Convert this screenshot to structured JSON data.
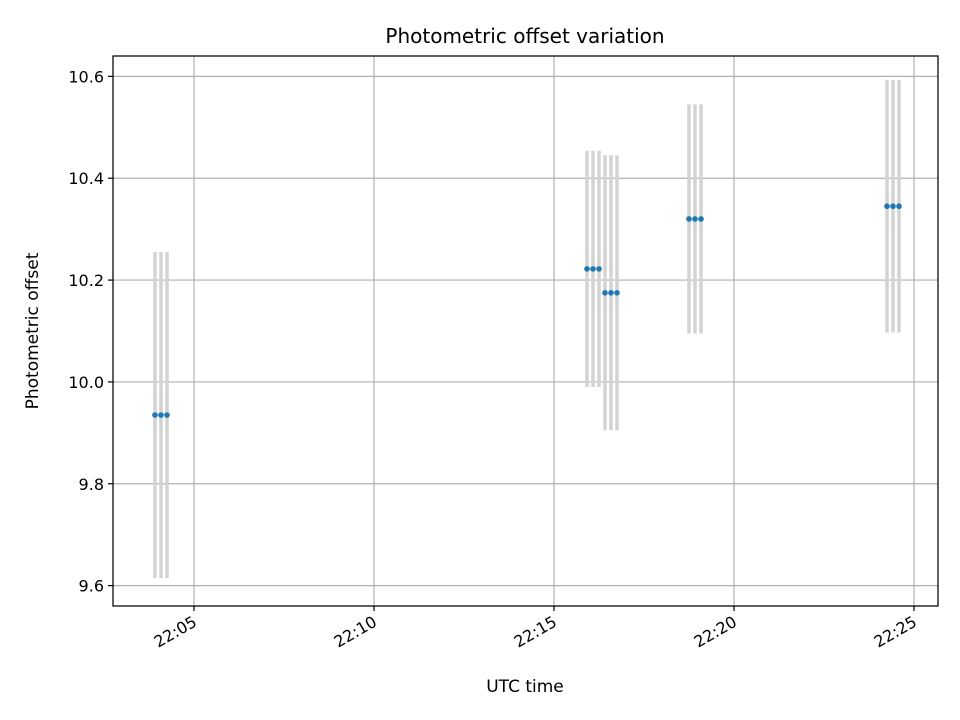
{
  "chart_data": {
    "type": "scatter",
    "title": "Photometric offset variation",
    "xlabel": "UTC time",
    "ylabel": "Photometric offset",
    "x_unit": "HH:MM UTC",
    "xlim": [
      "22:02:45",
      "22:25:40"
    ],
    "ylim": [
      9.56,
      10.64
    ],
    "xticks": [
      "22:05",
      "22:10",
      "22:15",
      "22:20",
      "22:25"
    ],
    "yticks": [
      "9.6",
      "9.8",
      "10.0",
      "10.2",
      "10.4",
      "10.6"
    ],
    "grid": true,
    "point_color": "#1f77b4",
    "errorbar_color": "#d3d3d3",
    "series": [
      {
        "points": [
          {
            "x": "22:03:55",
            "y": 9.935,
            "err": 0.32
          },
          {
            "x": "22:04:05",
            "y": 9.935,
            "err": 0.32
          },
          {
            "x": "22:04:15",
            "y": 9.935,
            "err": 0.32
          },
          {
            "x": "22:15:55",
            "y": 10.222,
            "err": 0.232
          },
          {
            "x": "22:16:05",
            "y": 10.222,
            "err": 0.232
          },
          {
            "x": "22:16:15",
            "y": 10.222,
            "err": 0.232
          },
          {
            "x": "22:16:25",
            "y": 10.175,
            "err": 0.27
          },
          {
            "x": "22:16:35",
            "y": 10.175,
            "err": 0.27
          },
          {
            "x": "22:16:45",
            "y": 10.175,
            "err": 0.27
          },
          {
            "x": "22:18:45",
            "y": 10.32,
            "err": 0.225
          },
          {
            "x": "22:18:55",
            "y": 10.32,
            "err": 0.225
          },
          {
            "x": "22:19:05",
            "y": 10.32,
            "err": 0.225
          },
          {
            "x": "22:24:15",
            "y": 10.345,
            "err": 0.248
          },
          {
            "x": "22:24:25",
            "y": 10.345,
            "err": 0.248
          },
          {
            "x": "22:24:35",
            "y": 10.345,
            "err": 0.248
          }
        ]
      }
    ]
  }
}
